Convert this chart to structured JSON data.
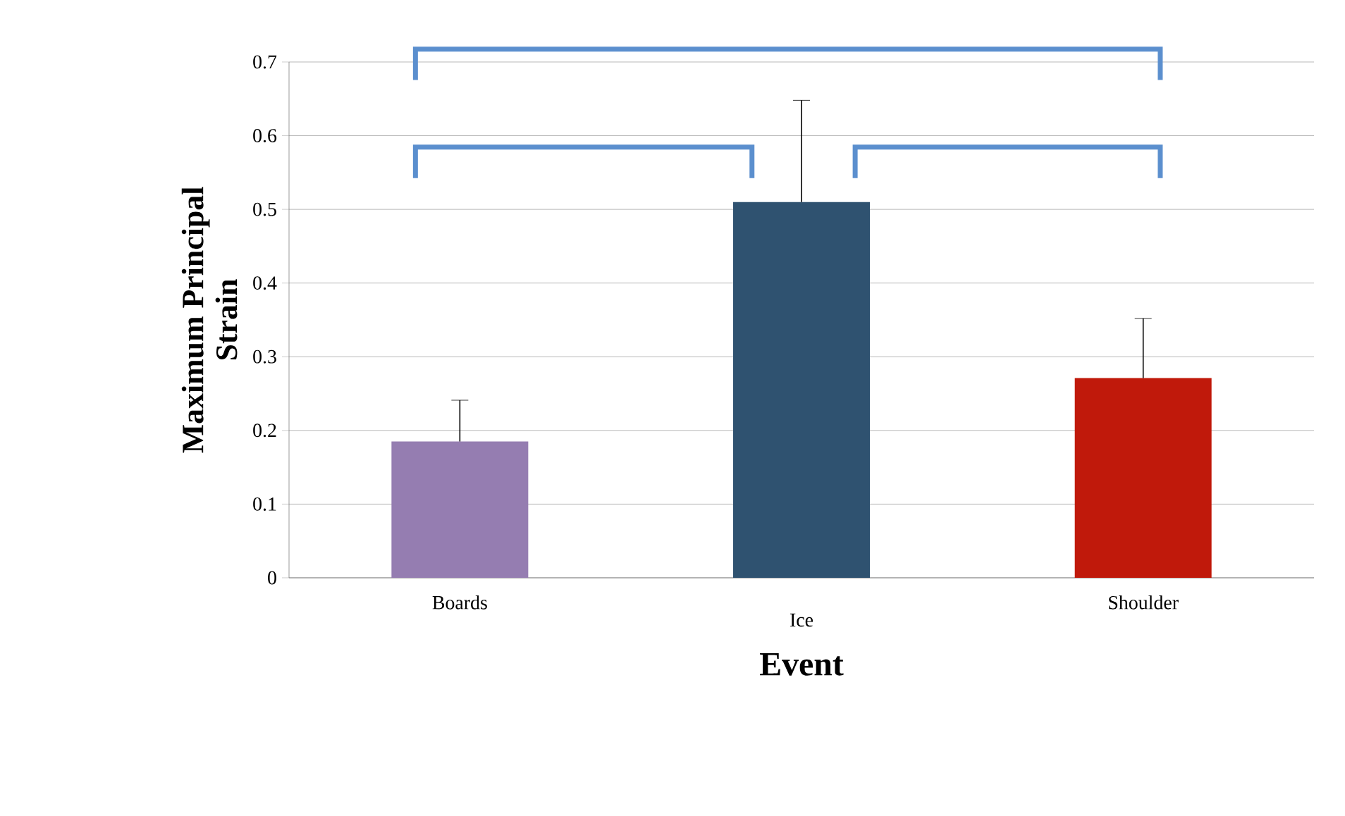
{
  "chart_data": {
    "type": "bar",
    "xlabel": "Event",
    "ylabel": "Maximum Principal Strain",
    "categories": [
      "Boards",
      "Ice",
      "Shoulder"
    ],
    "values": [
      0.185,
      0.51,
      0.271
    ],
    "colors": [
      "#957db1",
      "#2f5270",
      "#c0190b"
    ],
    "errors": [
      [
        0.185,
        0.241
      ],
      [
        0.51,
        0.648
      ],
      [
        0.271,
        0.352
      ]
    ],
    "ylim": [
      0,
      0.7
    ],
    "yticks": [
      0,
      0.1,
      0.2,
      0.3,
      0.4,
      0.5,
      0.6,
      0.7
    ],
    "grid": "y"
  }
}
